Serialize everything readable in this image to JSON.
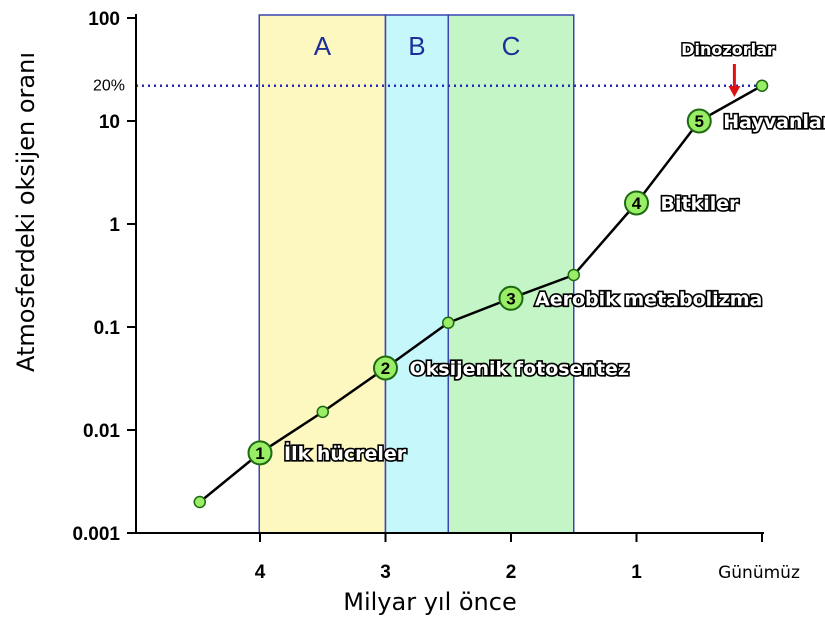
{
  "chart_data": {
    "type": "line",
    "xlabel": "Milyar yıl önce",
    "ylabel": "Atmosferdeki oksijen oranı",
    "y_scale": "log",
    "ylim": [
      0.001,
      100
    ],
    "xlim": [
      4.5,
      0
    ],
    "y_ticks": [
      {
        "value": 0.001,
        "label": "0.001"
      },
      {
        "value": 0.01,
        "label": "0.01"
      },
      {
        "value": 0.1,
        "label": "0.1"
      },
      {
        "value": 1,
        "label": "1"
      },
      {
        "value": 10,
        "label": "10"
      },
      {
        "value": 100,
        "label": "100"
      }
    ],
    "x_ticks": [
      {
        "value": 4,
        "label": "4"
      },
      {
        "value": 3,
        "label": "3"
      },
      {
        "value": 2,
        "label": "2"
      },
      {
        "value": 1,
        "label": "1"
      },
      {
        "value": 0,
        "label": "Günümüz"
      }
    ],
    "series": [
      {
        "x": [
          4.48,
          4.0,
          3.5,
          3.0,
          2.5,
          2.0,
          1.5,
          1.0,
          0.5,
          0.0
        ],
        "values": [
          0.002,
          0.006,
          0.015,
          0.04,
          0.11,
          0.19,
          0.32,
          1.6,
          10,
          22
        ],
        "color": "#000000",
        "marker_color": "#99ee66"
      }
    ],
    "regions": [
      {
        "label": "A",
        "from": 4.5,
        "to": 3.0,
        "color": "#fdf7c0"
      },
      {
        "label": "B",
        "from": 3.0,
        "to": 2.5,
        "color": "#c6f8fb"
      },
      {
        "label": "C",
        "from": 2.5,
        "to": 1.5,
        "color": "#c4f5c6"
      }
    ],
    "reference_line": {
      "value": 22,
      "label": "20%",
      "color": "#2a2ab8"
    },
    "milestones": [
      {
        "number": "1",
        "label": "İlk hücreler",
        "x": 4.0,
        "y": 0.006
      },
      {
        "number": "2",
        "label": "Oksijenik fotosentez",
        "x": 3.0,
        "y": 0.04
      },
      {
        "number": "3",
        "label": "Aerobik metabolizma",
        "x": 2.0,
        "y": 0.19
      },
      {
        "number": "4",
        "label": "Bitkiler",
        "x": 1.0,
        "y": 1.6
      },
      {
        "number": "5",
        "label": "Hayvanlar",
        "x": 0.5,
        "y": 10
      }
    ],
    "annotation": {
      "label": "Dinozorlar",
      "x": 0.22,
      "arrow_color": "#dd1111"
    },
    "grid": false,
    "legend": "none"
  }
}
